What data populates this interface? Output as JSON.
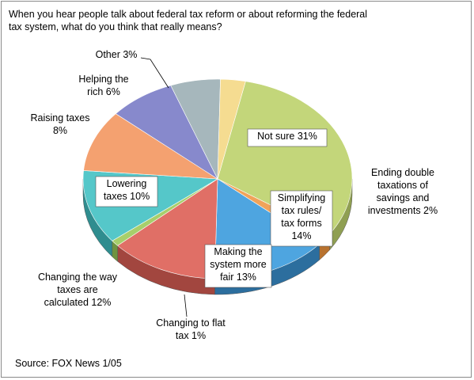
{
  "chart_data": {
    "type": "pie",
    "title": "When you hear people talk about federal tax reform or about reforming the federal tax system, what do you think that really means?",
    "source": "Source: FOX News 1/05",
    "slices": [
      {
        "label_lines": [
          "Not sure 31%"
        ],
        "value": 31,
        "color": "#c3d67a",
        "side": "#8f9f52"
      },
      {
        "label_lines": [
          "Ending double",
          "taxations of",
          "savings and",
          "investments 2%"
        ],
        "value": 2,
        "color": "#f0a35a",
        "side": "#b8722f"
      },
      {
        "label_lines": [
          "Simplifying",
          "tax rules/",
          "tax forms",
          "14%"
        ],
        "value": 14,
        "color": "#4ea5e0",
        "side": "#2c6e9e"
      },
      {
        "label_lines": [
          "Making the",
          "system more",
          "fair 13%"
        ],
        "value": 13,
        "color": "#e06f66",
        "side": "#a2463f"
      },
      {
        "label_lines": [
          "Changing to flat",
          "tax 1%"
        ],
        "value": 1,
        "color": "#a7cf6b",
        "side": "#6f9340"
      },
      {
        "label_lines": [
          "Changing the way",
          "taxes are",
          "calculated 12%"
        ],
        "value": 12,
        "color": "#55c7c9",
        "side": "#2f8d8f"
      },
      {
        "label_lines": [
          "Lowering",
          "taxes 10%"
        ],
        "value": 10,
        "color": "#f4a170",
        "side": "#b56e45"
      },
      {
        "label_lines": [
          "Raising taxes",
          "8%"
        ],
        "value": 8,
        "color": "#8789cc",
        "side": "#575a97"
      },
      {
        "label_lines": [
          "Helping the",
          "rich 6%"
        ],
        "value": 6,
        "color": "#a6b7bc",
        "side": "#6f8388"
      },
      {
        "label_lines": [
          "Other 3%"
        ],
        "value": 3,
        "color": "#f5dc91",
        "side": "#b9a45f"
      }
    ]
  }
}
